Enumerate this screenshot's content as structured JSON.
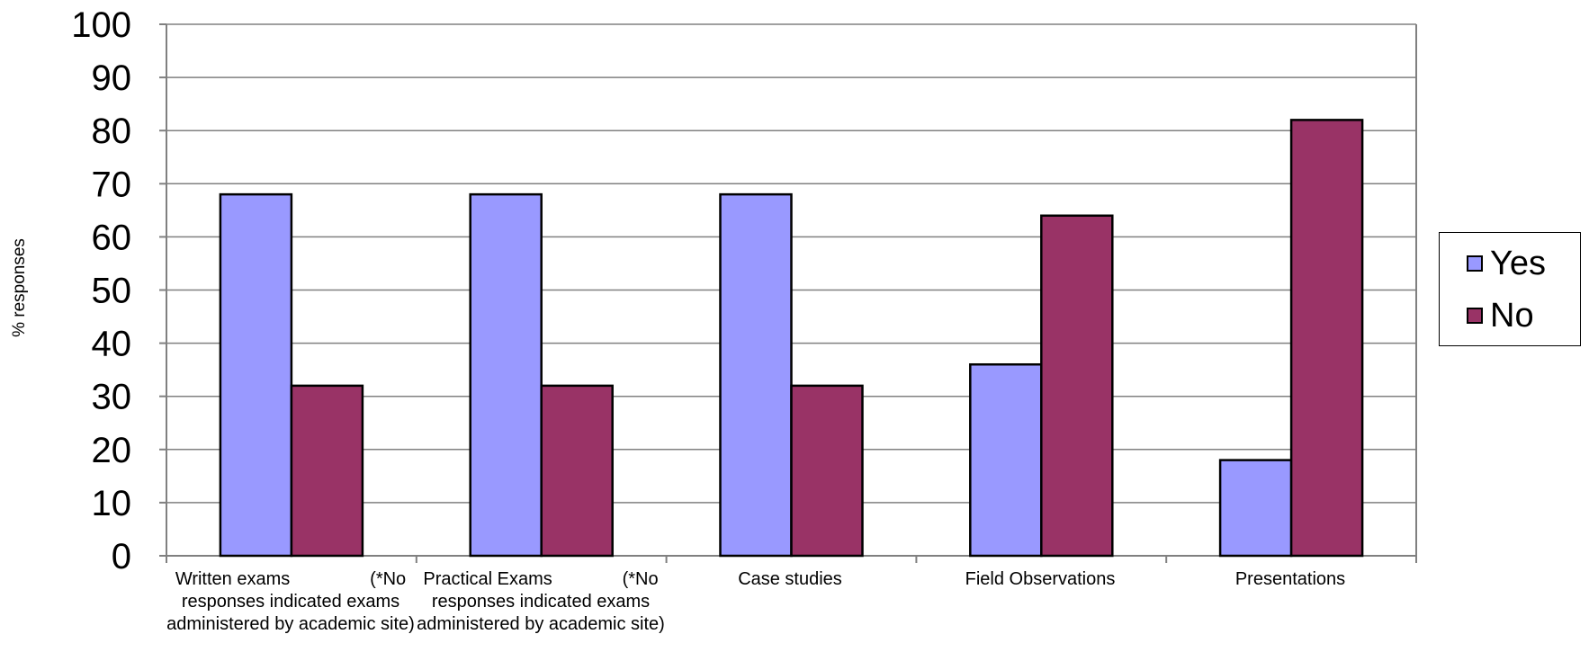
{
  "chart_data": {
    "type": "bar",
    "ylabel": "% responses",
    "xlabel": "",
    "ylim": [
      0,
      100
    ],
    "yticks": [
      "0",
      "10",
      "20",
      "30",
      "40",
      "50",
      "60",
      "70",
      "80",
      "90",
      "100"
    ],
    "grid": true,
    "legend_position": "right",
    "categories": [
      "Written exams                (*No responses indicated exams administered by academic site)",
      "Practical Exams              (*No responses indicated exams administered by academic site)",
      "Case studies",
      "Field Observations",
      "Presentations"
    ],
    "series": [
      {
        "name": "Yes",
        "color": "#9999ff",
        "values": [
          68,
          68,
          68,
          36,
          18
        ]
      },
      {
        "name": "No",
        "color": "#993366",
        "values": [
          32,
          32,
          32,
          64,
          82
        ]
      }
    ]
  }
}
